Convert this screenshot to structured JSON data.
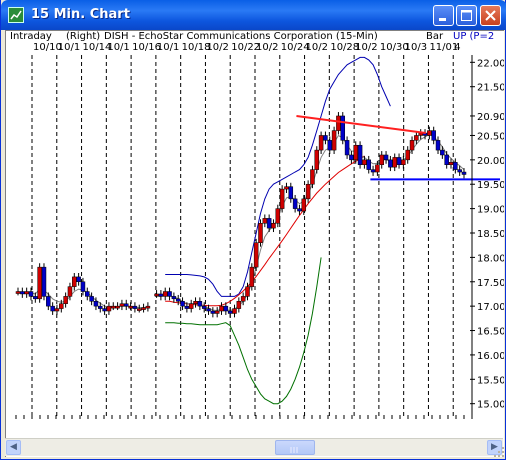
{
  "window": {
    "title": "15 Min. Chart"
  },
  "header": {
    "interval": "Intraday",
    "scale_side": "(Right)",
    "symbol_desc": "DISH - EchoStar Communications Corporation (15-Min)",
    "chart_style": "Bar",
    "indicator": "UP (P=2"
  },
  "date_labels": [
    "10/10",
    "10/1",
    "10/14",
    "10/1",
    "10/16",
    "10/1",
    "10/18",
    "10/2",
    "10/22",
    "10/2",
    "10/24",
    "10/2",
    "10/28",
    "10/2",
    "10/30",
    "10/3",
    "11/01",
    "4"
  ],
  "colors": {
    "up_bar": "#d00000",
    "down_bar": "#0000c8",
    "upper_band": "#0000b0",
    "lower_band": "#007000",
    "ma_long": "#e00000",
    "ma_short": "#808080",
    "resistance": "#ff2020",
    "support": "#0000ff"
  },
  "chart_data": {
    "type": "candlestick",
    "symbol": "DISH",
    "interval": "15-Min",
    "y_axis_side": "right",
    "y_ticks": [
      "22.00",
      "21.50",
      "20.90",
      "20.50",
      "20.00",
      "19.50",
      "19.00",
      "18.50",
      "18.00",
      "17.50",
      "17.00",
      "16.50",
      "16.00",
      "15.50",
      "15.00"
    ],
    "ylim": [
      14.85,
      22.15
    ],
    "x_tick_labels": [
      "10/10",
      "10/1",
      "10/14",
      "10/1",
      "10/16",
      "10/1",
      "10/18",
      "10/2",
      "10/22",
      "10/2",
      "10/24",
      "10/2",
      "10/28",
      "10/2",
      "10/30",
      "10/3",
      "11/01",
      "4"
    ],
    "price_series": [
      17.3,
      17.25,
      17.3,
      17.2,
      17.15,
      17.8,
      17.2,
      17.0,
      16.9,
      16.95,
      17.05,
      17.2,
      17.4,
      17.6,
      17.5,
      17.3,
      17.2,
      17.1,
      17.0,
      16.95,
      16.9,
      17.0,
      17.0,
      17.0,
      17.05,
      17.0,
      17.0,
      16.95,
      16.95,
      16.97,
      17.0,
      null,
      17.25,
      17.2,
      17.3,
      17.2,
      17.15,
      17.1,
      17.0,
      16.95,
      17.05,
      17.1,
      17.0,
      16.95,
      16.9,
      16.85,
      16.9,
      17.0,
      16.9,
      16.85,
      16.95,
      17.1,
      17.2,
      17.4,
      17.8,
      18.3,
      18.7,
      18.8,
      18.6,
      18.7,
      19.0,
      19.4,
      19.45,
      19.2,
      19.0,
      18.95,
      19.2,
      19.5,
      19.8,
      20.2,
      20.5,
      20.4,
      20.2,
      20.6,
      20.9,
      20.4,
      20.1,
      20.0,
      20.3,
      19.9,
      20.0,
      19.8,
      19.75,
      19.9,
      20.1,
      20.0,
      19.85,
      20.05,
      19.9,
      20.0,
      20.2,
      20.4,
      20.5,
      20.55,
      20.5,
      20.6,
      20.4,
      20.2,
      20.1,
      19.9,
      19.95,
      19.8,
      19.75,
      19.7
    ],
    "upper_band": [
      null,
      null,
      null,
      null,
      null,
      null,
      null,
      null,
      null,
      null,
      null,
      null,
      null,
      null,
      null,
      null,
      null,
      null,
      null,
      null,
      null,
      null,
      null,
      null,
      null,
      null,
      null,
      null,
      null,
      null,
      null,
      null,
      null,
      null,
      17.65,
      17.65,
      17.65,
      17.65,
      17.65,
      17.65,
      17.64,
      17.63,
      17.62,
      17.6,
      17.55,
      17.45,
      17.3,
      17.2,
      17.2,
      17.2,
      17.2,
      17.25,
      17.4,
      17.7,
      18.1,
      18.5,
      18.9,
      19.2,
      19.4,
      19.5,
      19.55,
      19.6,
      19.65,
      19.7,
      19.75,
      19.8,
      19.9,
      20.05,
      20.3,
      20.6,
      20.9,
      21.2,
      21.45,
      21.6,
      21.75,
      21.85,
      21.95,
      22.0,
      22.05,
      22.1,
      22.1,
      22.05,
      21.95,
      21.75,
      21.5,
      21.3,
      21.1
    ],
    "lower_band": [
      null,
      null,
      null,
      null,
      null,
      null,
      null,
      null,
      null,
      null,
      null,
      null,
      null,
      null,
      null,
      null,
      null,
      null,
      null,
      null,
      null,
      null,
      null,
      null,
      null,
      null,
      null,
      null,
      null,
      null,
      null,
      null,
      null,
      null,
      16.66,
      16.66,
      16.66,
      16.65,
      16.65,
      16.64,
      16.64,
      16.63,
      16.62,
      16.62,
      16.62,
      16.62,
      16.62,
      16.64,
      16.66,
      16.6,
      16.4,
      16.2,
      15.95,
      15.7,
      15.5,
      15.35,
      15.2,
      15.1,
      15.05,
      15.0,
      15.0,
      15.05,
      15.15,
      15.3,
      15.5,
      15.75,
      16.05,
      16.4,
      16.85,
      17.4,
      18.0
    ],
    "ma_long": [
      null,
      null,
      null,
      null,
      null,
      null,
      null,
      null,
      null,
      null,
      null,
      null,
      null,
      null,
      null,
      null,
      null,
      null,
      null,
      null,
      null,
      null,
      null,
      null,
      null,
      null,
      null,
      null,
      null,
      null,
      null,
      null,
      null,
      null,
      17.1,
      17.1,
      17.08,
      17.07,
      17.06,
      17.05,
      17.04,
      17.03,
      17.02,
      17.02,
      17.01,
      17.01,
      17.01,
      17.02,
      17.05,
      17.1,
      17.16,
      17.23,
      17.31,
      17.4,
      17.5,
      17.61,
      17.73,
      17.85,
      17.98,
      18.1,
      18.22,
      18.34,
      18.47,
      18.6,
      18.73,
      18.86,
      18.98,
      19.1,
      19.21,
      19.32,
      19.41,
      19.5,
      19.58,
      19.66,
      19.74,
      19.8,
      19.86,
      19.92,
      19.97,
      20.02,
      20.08
    ],
    "ma_short": [
      17.3,
      17.28,
      17.28,
      17.27,
      17.25,
      17.35,
      17.32,
      17.25,
      17.15,
      17.1,
      17.08,
      17.1,
      17.2,
      17.3,
      17.35,
      17.33,
      17.28,
      17.2,
      17.12,
      17.06,
      17.0,
      16.98,
      16.98,
      16.99,
      17.0,
      17.0,
      17.0,
      16.98,
      16.97,
      16.97,
      16.98,
      null,
      17.2,
      17.2,
      17.22,
      17.21,
      17.19,
      17.15,
      17.1,
      17.05,
      17.05,
      17.05,
      17.03,
      17.0,
      16.96,
      16.92,
      16.91,
      16.94,
      16.93,
      16.91,
      16.94,
      17.01,
      17.1,
      17.24,
      17.48,
      17.8,
      18.15,
      18.42,
      18.55,
      18.65,
      18.8,
      19.05,
      19.22,
      19.25,
      19.18,
      19.1,
      19.15,
      19.3,
      19.5,
      19.78,
      20.05,
      20.2,
      20.25,
      20.35,
      20.5,
      20.45,
      20.3,
      20.18,
      20.18,
      20.08,
      20.05,
      19.98,
      19.92,
      19.93,
      20.0,
      20.0,
      19.97,
      20.0,
      19.98,
      20.0,
      20.07,
      20.2,
      20.32,
      20.42,
      20.47,
      20.52,
      20.48,
      20.38,
      20.27,
      20.12,
      20.03,
      19.95,
      19.88,
      19.8
    ],
    "trendline_resistance": {
      "from": [
        0.62,
        20.9
      ],
      "to": [
        0.9,
        20.55
      ]
    },
    "support_level": 19.6
  }
}
